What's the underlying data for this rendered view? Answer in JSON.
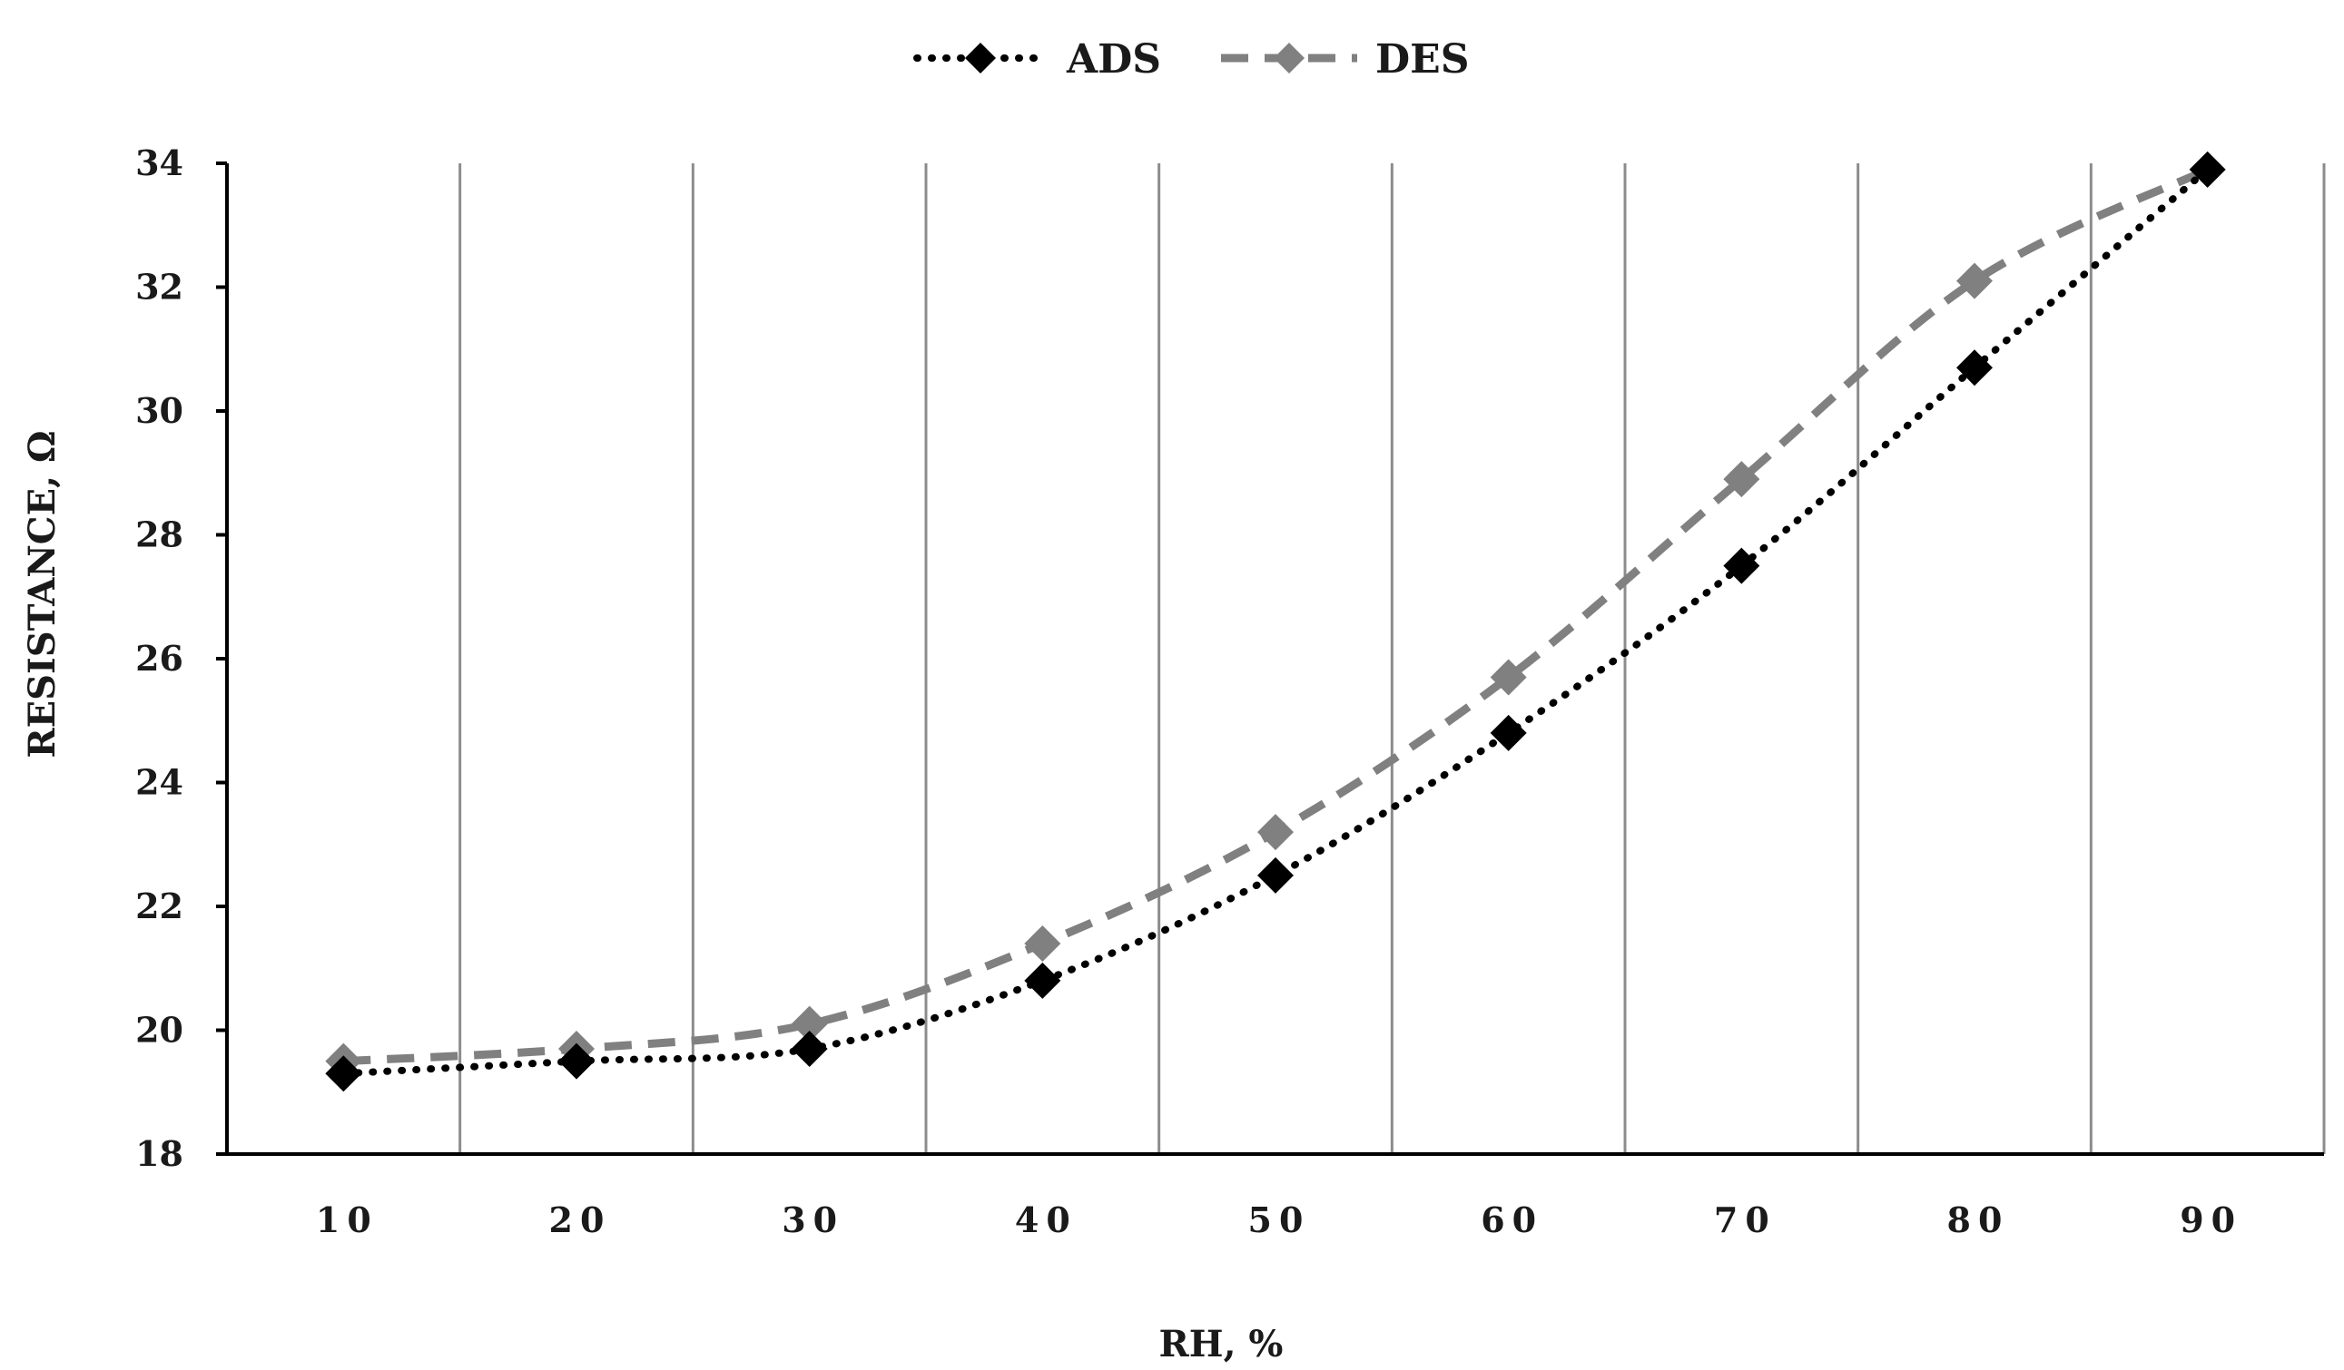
{
  "chart_data": {
    "type": "line",
    "title": "",
    "xlabel": "RH, %",
    "ylabel": "RESISTANCE, Ω",
    "categories": [
      "10",
      "20",
      "30",
      "40",
      "50",
      "60",
      "70",
      "80",
      "90"
    ],
    "ylim": [
      18,
      34
    ],
    "yticks": [
      "18",
      "20",
      "22",
      "24",
      "26",
      "28",
      "30",
      "32",
      "34"
    ],
    "grid": "vertical",
    "legend": "top-center",
    "series": [
      {
        "name": "ADS",
        "values": [
          19.3,
          19.5,
          19.7,
          20.8,
          22.5,
          24.8,
          27.5,
          30.7,
          33.9
        ],
        "color": "#000000",
        "style": "dotted",
        "marker": "diamond"
      },
      {
        "name": "DES",
        "values": [
          19.5,
          19.7,
          20.1,
          21.4,
          23.2,
          25.7,
          28.9,
          32.1,
          33.9
        ],
        "color": "#808080",
        "style": "dashed",
        "marker": "diamond"
      }
    ]
  }
}
